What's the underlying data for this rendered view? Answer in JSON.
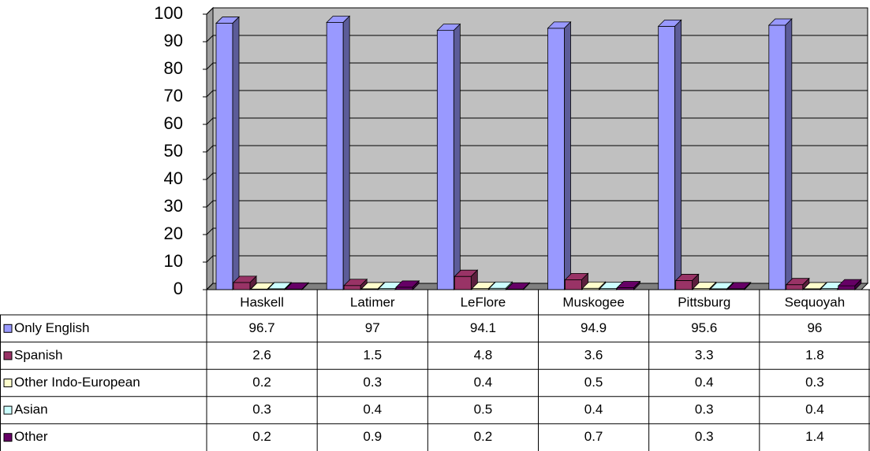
{
  "chart_data": {
    "type": "bar3d",
    "categories": [
      "Haskell",
      "Latimer",
      "LeFlore",
      "Muskogee",
      "Pittsburg",
      "Sequoyah"
    ],
    "series": [
      {
        "name": "Only English",
        "color": "#9999ff",
        "values": [
          96.7,
          97,
          94.1,
          94.9,
          95.6,
          96
        ]
      },
      {
        "name": "Spanish",
        "color": "#993366",
        "values": [
          2.6,
          1.5,
          4.8,
          3.6,
          3.3,
          1.8
        ]
      },
      {
        "name": "Other Indo-European",
        "color": "#ffffcc",
        "values": [
          0.2,
          0.3,
          0.4,
          0.5,
          0.4,
          0.3
        ]
      },
      {
        "name": "Asian",
        "color": "#ccffff",
        "values": [
          0.3,
          0.4,
          0.5,
          0.4,
          0.3,
          0.4
        ]
      },
      {
        "name": "Other",
        "color": "#660066",
        "values": [
          0.2,
          0.9,
          0.2,
          0.7,
          0.3,
          1.4
        ]
      }
    ],
    "ylim": [
      0,
      100
    ],
    "yticks": [
      0,
      10,
      20,
      30,
      40,
      50,
      60,
      70,
      80,
      90,
      100
    ],
    "grid": true,
    "wall_color": "#c0c0c0"
  }
}
